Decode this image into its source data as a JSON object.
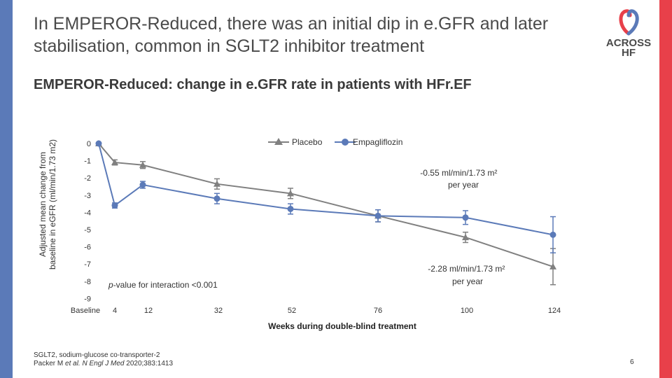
{
  "header": {
    "title": "In EMPEROR-Reduced, there was an initial dip in e.GFR and later stabilisation, common in SGLT2 inhibitor treatment",
    "logo_line1": "ACROSS",
    "logo_line2": "HF"
  },
  "subtitle": "EMPEROR-Reduced: change in e.GFR rate in patients with HFr.EF",
  "colors": {
    "left_bar": "#5b7ab8",
    "right_bar": "#e8404a",
    "placebo": "#808080",
    "empagliflozin": "#5b7ab8"
  },
  "chart_data": {
    "type": "line",
    "title": "",
    "xlabel": "Weeks during double-blind treatment",
    "ylabel": "Adjusted mean change from baseline in eGFR (ml/min/1.73 m2)",
    "ylim": [
      -9,
      0
    ],
    "yticks": [
      "0",
      "-1",
      "-2",
      "-3",
      "-4",
      "-5",
      "-6",
      "-7",
      "-8",
      "-9"
    ],
    "x": [
      "Baseline",
      "4",
      "12",
      "32",
      "52",
      "76",
      "100",
      "124"
    ],
    "legend_position": "top-right",
    "series": [
      {
        "name": "Placebo",
        "marker": "triangle",
        "values": [
          0,
          -1.1,
          -1.25,
          -2.35,
          -2.9,
          -4.2,
          -5.45,
          -7.15
        ],
        "err": [
          0,
          0.15,
          0.2,
          0.3,
          0.3,
          0.35,
          0.3,
          1.05
        ]
      },
      {
        "name": "Empagliflozin",
        "marker": "circle",
        "values": [
          0,
          -3.6,
          -2.4,
          -3.2,
          -3.8,
          -4.2,
          -4.3,
          -5.3
        ],
        "err": [
          0,
          0.15,
          0.2,
          0.3,
          0.3,
          0.35,
          0.4,
          1.05
        ]
      }
    ],
    "annotations": {
      "empagliflozin_slope_line1": "-0.55 ml/min/1.73 m²",
      "empagliflozin_slope_line2": "per year",
      "placebo_slope_line1": "-2.28 ml/min/1.73 m²",
      "placebo_slope_line2": "per year",
      "interaction_italic": "p",
      "interaction_rest": "-value for interaction <0.001"
    }
  },
  "footnote": {
    "line1": "SGLT2, sodium-glucose co-transporter-2",
    "line2_prefix": "Packer M ",
    "line2_italic": "et al. N Engl J Med",
    "line2_suffix": " 2020;383:1413"
  },
  "page_number": "6"
}
